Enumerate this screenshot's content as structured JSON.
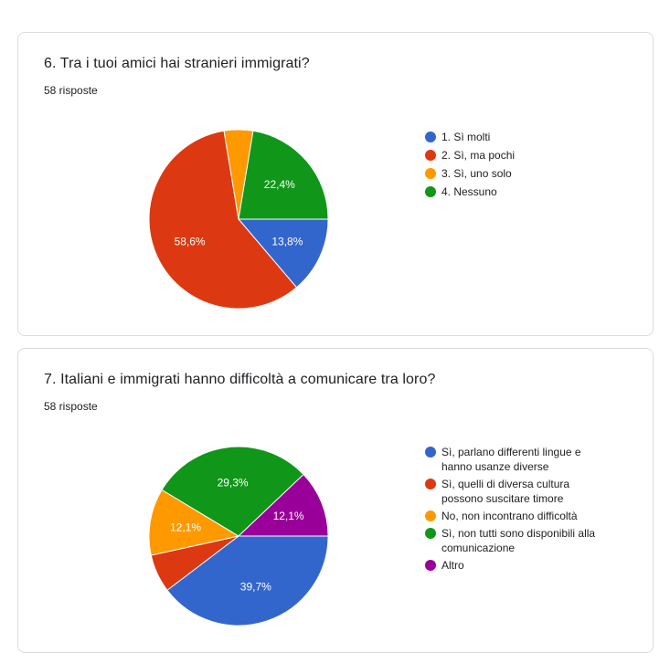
{
  "questions": [
    {
      "title": "6. Tra i tuoi amici hai stranieri immigrati?",
      "responses": "58 risposte"
    },
    {
      "title": "7. Italiani e immigrati hanno difficoltà a comunicare tra loro?",
      "responses": "58 risposte"
    }
  ],
  "chart_data": [
    {
      "type": "pie",
      "title": "6. Tra i tuoi amici hai stranieri immigrati?",
      "legend_position": "right",
      "slices": [
        {
          "label": "1. Sì molti",
          "value": 13.8,
          "display": "13,8%",
          "color": "#3366cc"
        },
        {
          "label": "2. Sì, ma pochi",
          "value": 58.6,
          "display": "58,6%",
          "color": "#dc3912"
        },
        {
          "label": "3. Sì, uno solo",
          "value": 5.2,
          "display": "",
          "color": "#ff9900"
        },
        {
          "label": "4. Nessuno",
          "value": 22.4,
          "display": "22,4%",
          "color": "#109618"
        }
      ]
    },
    {
      "type": "pie",
      "title": "7. Italiani e immigrati hanno difficoltà a comunicare tra loro?",
      "legend_position": "right",
      "slices": [
        {
          "label": "Sì, parlano differenti lingue e hanno usanze diverse",
          "value": 39.7,
          "display": "39,7%",
          "color": "#3366cc"
        },
        {
          "label": "Sì, quelli di diversa cultura possono suscitare timore",
          "value": 6.9,
          "display": "",
          "color": "#dc3912"
        },
        {
          "label": "No, non incontrano difficoltà",
          "value": 12.1,
          "display": "12,1%",
          "color": "#ff9900"
        },
        {
          "label": "Sì, non tutti sono disponibili alla comunicazione",
          "value": 29.3,
          "display": "29,3%",
          "color": "#109618"
        },
        {
          "label": "Altro",
          "value": 12.1,
          "display": "12,1%",
          "color": "#990099"
        }
      ]
    }
  ]
}
